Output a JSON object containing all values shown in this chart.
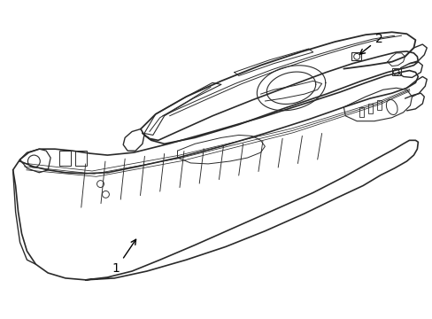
{
  "background_color": "#ffffff",
  "line_color": "#2a2a2a",
  "line_width": 1.0,
  "label1_text": "1",
  "label2_text": "2",
  "font_size": 10
}
